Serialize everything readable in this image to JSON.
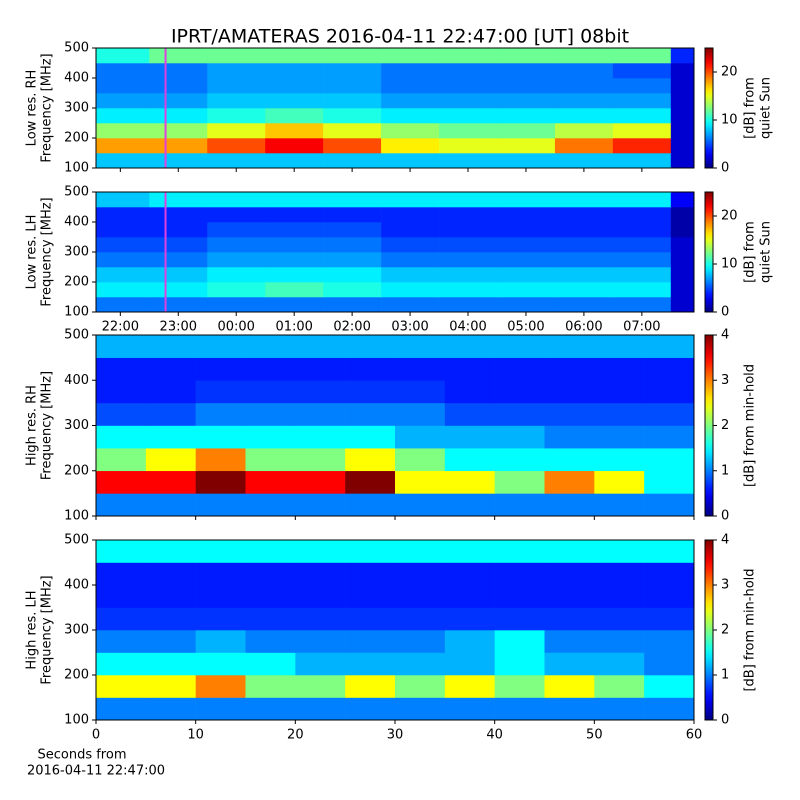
{
  "title": "IPRT/AMATERAS 2016-04-11 22:47:00 [UT]   08bit",
  "chart_data": [
    {
      "type": "heatmap",
      "ylabel": [
        "Low res. RH",
        "Frequency [MHz]"
      ],
      "colorbar_label": [
        "[dB] from",
        "quiet Sun"
      ],
      "colormap": "jet",
      "clim": [
        0,
        25
      ],
      "cticks": [
        0,
        10,
        20
      ],
      "xlim": [
        21.58,
        31.9
      ],
      "xticks": [
        22,
        23,
        24,
        25,
        26,
        27,
        28,
        29,
        30,
        31
      ],
      "xtick_labels": false,
      "ylim": [
        100,
        500
      ],
      "yticks": [
        100,
        200,
        300,
        400,
        500
      ],
      "marker": {
        "x": 22.78,
        "color": "#e040e0"
      },
      "x_edges": [
        21.58,
        22.5,
        23.5,
        24.5,
        25.5,
        26.5,
        27.5,
        28.5,
        29.5,
        30.5,
        31.5,
        31.9
      ],
      "y_edges": [
        100,
        150,
        200,
        250,
        300,
        350,
        400,
        450,
        500
      ],
      "z": [
        [
          8,
          8,
          8,
          8,
          8,
          8,
          8,
          8,
          8,
          8,
          2
        ],
        [
          18,
          18,
          20,
          22,
          20,
          16,
          15,
          15,
          19,
          21,
          2
        ],
        [
          13,
          13,
          15,
          17,
          15,
          13,
          12,
          12,
          14,
          15,
          2
        ],
        [
          9,
          9,
          10,
          11,
          10,
          9,
          9,
          9,
          9,
          9,
          2
        ],
        [
          7,
          7,
          8,
          8,
          8,
          7,
          7,
          7,
          7,
          7,
          2
        ],
        [
          6,
          6,
          7,
          7,
          7,
          6,
          6,
          6,
          6,
          6,
          2
        ],
        [
          6,
          6,
          7,
          7,
          7,
          6,
          6,
          6,
          6,
          5,
          2
        ],
        [
          10,
          12,
          12,
          12,
          12,
          12,
          12,
          12,
          12,
          12,
          4
        ]
      ]
    },
    {
      "type": "heatmap",
      "ylabel": [
        "Low res. LH",
        "Frequency [MHz]"
      ],
      "colorbar_label": [
        "[dB] from",
        "quiet Sun"
      ],
      "colormap": "jet",
      "clim": [
        0,
        25
      ],
      "cticks": [
        0,
        10,
        20
      ],
      "xlim": [
        21.58,
        31.9
      ],
      "xticks": [
        {
          "value": 22,
          "label": "22:00"
        },
        {
          "value": 23,
          "label": "23:00"
        },
        {
          "value": 24,
          "label": "00:00"
        },
        {
          "value": 25,
          "label": "01:00"
        },
        {
          "value": 26,
          "label": "02:00"
        },
        {
          "value": 27,
          "label": "03:00"
        },
        {
          "value": 28,
          "label": "04:00"
        },
        {
          "value": 29,
          "label": "05:00"
        },
        {
          "value": 30,
          "label": "06:00"
        },
        {
          "value": 31,
          "label": "07:00"
        }
      ],
      "xtick_labels": true,
      "ylim": [
        100,
        500
      ],
      "yticks": [
        100,
        200,
        300,
        400,
        500
      ],
      "marker": {
        "x": 22.78,
        "color": "#e040e0"
      },
      "x_edges": [
        21.58,
        22.5,
        23.5,
        24.5,
        25.5,
        26.5,
        27.5,
        28.5,
        29.5,
        30.5,
        31.5,
        31.9
      ],
      "y_edges": [
        100,
        150,
        200,
        250,
        300,
        350,
        400,
        450,
        500
      ],
      "z": [
        [
          6,
          6,
          6,
          6,
          6,
          6,
          6,
          6,
          6,
          6,
          2
        ],
        [
          9,
          9,
          10,
          11,
          10,
          9,
          9,
          9,
          9,
          9,
          2
        ],
        [
          8,
          8,
          9,
          9,
          9,
          8,
          8,
          8,
          8,
          8,
          2
        ],
        [
          6,
          6,
          7,
          7,
          7,
          6,
          6,
          6,
          6,
          6,
          2
        ],
        [
          5,
          5,
          6,
          6,
          6,
          5,
          5,
          5,
          5,
          5,
          2
        ],
        [
          4,
          4,
          5,
          5,
          5,
          4,
          4,
          4,
          4,
          4,
          1
        ],
        [
          4,
          4,
          4,
          4,
          4,
          4,
          4,
          4,
          4,
          4,
          1
        ],
        [
          8,
          9,
          9,
          9,
          9,
          9,
          9,
          9,
          9,
          9,
          3
        ]
      ]
    },
    {
      "type": "heatmap",
      "ylabel": [
        "High res. RH",
        "Frequency [MHz]"
      ],
      "colorbar_label": [
        "[dB] from min-hold"
      ],
      "colormap": "jet",
      "clim": [
        0,
        4
      ],
      "cticks": [
        0,
        1,
        2,
        3,
        4
      ],
      "xlim": [
        0,
        60
      ],
      "xticks": [
        0,
        10,
        20,
        30,
        40,
        50,
        60
      ],
      "xtick_labels": false,
      "ylim": [
        100,
        500
      ],
      "yticks": [
        100,
        200,
        300,
        400,
        500
      ],
      "x_edges": [
        0,
        5,
        10,
        15,
        20,
        25,
        30,
        35,
        40,
        45,
        50,
        55,
        60
      ],
      "y_edges": [
        100,
        150,
        200,
        250,
        300,
        350,
        400,
        450,
        500
      ],
      "z": [
        [
          1,
          1,
          1,
          1,
          1,
          1,
          1,
          1,
          1,
          1,
          1,
          1
        ],
        [
          3.5,
          3.5,
          4,
          3.5,
          3.5,
          4,
          2.5,
          2.5,
          2,
          3,
          2.5,
          1.5
        ],
        [
          2,
          2.5,
          3,
          2,
          2,
          2.5,
          2,
          1.5,
          1.5,
          1.5,
          1.5,
          1.5
        ],
        [
          1.5,
          1.5,
          1.5,
          1.5,
          1.5,
          1.5,
          1.2,
          1.2,
          1.2,
          1,
          1,
          1
        ],
        [
          0.8,
          0.8,
          1,
          1,
          1,
          1,
          1,
          0.8,
          0.8,
          0.8,
          0.8,
          0.8
        ],
        [
          0.6,
          0.6,
          0.7,
          0.7,
          0.7,
          0.7,
          0.7,
          0.6,
          0.6,
          0.6,
          0.6,
          0.6
        ],
        [
          0.6,
          0.6,
          0.6,
          0.6,
          0.6,
          0.6,
          0.6,
          0.6,
          0.6,
          0.6,
          0.6,
          0.6
        ],
        [
          1.2,
          1.2,
          1.2,
          1.2,
          1.2,
          1.2,
          1.2,
          1.2,
          1.2,
          1.2,
          1.2,
          1.2
        ]
      ]
    },
    {
      "type": "heatmap",
      "ylabel": [
        "High res. LH",
        "Frequency [MHz]"
      ],
      "colorbar_label": [
        "[dB] from min-hold"
      ],
      "colormap": "jet",
      "clim": [
        0,
        4
      ],
      "cticks": [
        0,
        1,
        2,
        3,
        4
      ],
      "xlim": [
        0,
        60
      ],
      "xticks": [
        0,
        10,
        20,
        30,
        40,
        50,
        60
      ],
      "xtick_labels": true,
      "xlabel": [
        "Seconds from",
        "2016-04-11 22:47:00"
      ],
      "ylim": [
        100,
        500
      ],
      "yticks": [
        100,
        200,
        300,
        400,
        500
      ],
      "x_edges": [
        0,
        5,
        10,
        15,
        20,
        25,
        30,
        35,
        40,
        45,
        50,
        55,
        60
      ],
      "y_edges": [
        100,
        150,
        200,
        250,
        300,
        350,
        400,
        450,
        500
      ],
      "z": [
        [
          1,
          1,
          1,
          1,
          1,
          1,
          1,
          1,
          1,
          1,
          1,
          1
        ],
        [
          2.5,
          2.5,
          3,
          2,
          2,
          2.5,
          2,
          2.5,
          2,
          2.5,
          2,
          1.5
        ],
        [
          1.5,
          1.5,
          1.5,
          1.5,
          1.2,
          1.2,
          1.2,
          1.2,
          1.5,
          1.2,
          1.2,
          1
        ],
        [
          1,
          1,
          1.2,
          1,
          1,
          1,
          1,
          1.2,
          1.5,
          1,
          1,
          1
        ],
        [
          0.7,
          0.7,
          0.7,
          0.7,
          0.7,
          0.7,
          0.7,
          0.7,
          0.7,
          0.7,
          0.7,
          0.7
        ],
        [
          0.6,
          0.6,
          0.6,
          0.6,
          0.6,
          0.6,
          0.6,
          0.6,
          0.6,
          0.6,
          0.6,
          0.6
        ],
        [
          0.6,
          0.6,
          0.6,
          0.6,
          0.6,
          0.6,
          0.6,
          0.6,
          0.6,
          0.6,
          0.6,
          0.6
        ],
        [
          1.5,
          1.5,
          1.5,
          1.5,
          1.5,
          1.5,
          1.5,
          1.5,
          1.5,
          1.5,
          1.5,
          1.5
        ]
      ]
    }
  ]
}
